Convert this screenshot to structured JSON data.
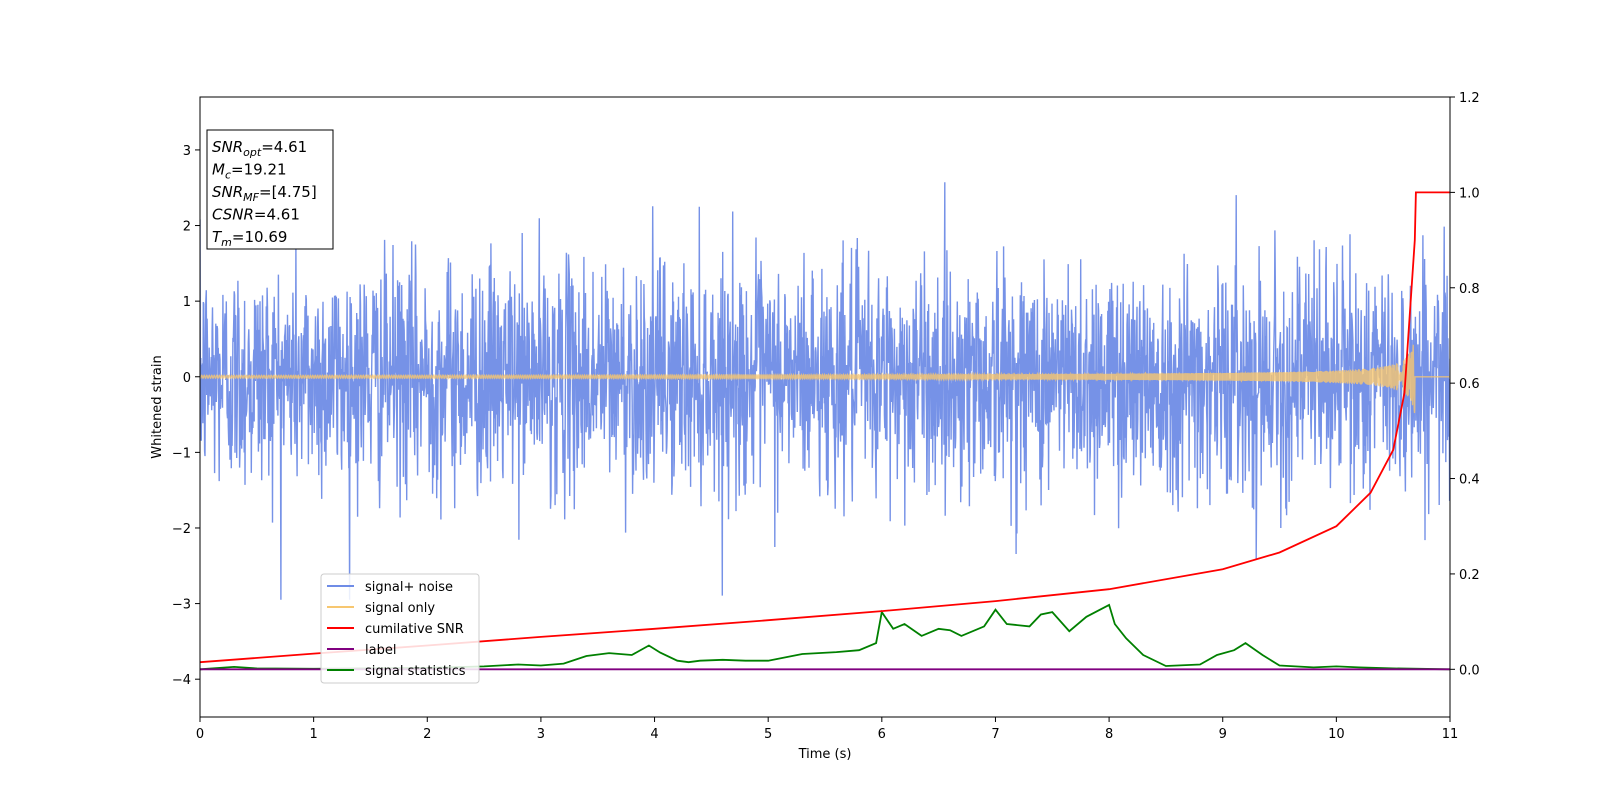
{
  "chart_data": {
    "type": "line",
    "xlabel": "Time (s)",
    "ylabel": "Whitened strain",
    "xlim": [
      0,
      11
    ],
    "ylim": [
      -4.5,
      3.7
    ],
    "y2lim": [
      -0.1,
      1.2
    ],
    "xticks": [
      0,
      1,
      2,
      3,
      4,
      5,
      6,
      7,
      8,
      9,
      10,
      11
    ],
    "yticks": [
      -4,
      -3,
      -2,
      -1,
      0,
      1,
      2,
      3
    ],
    "y2ticks": [
      0.0,
      0.2,
      0.4,
      0.6,
      0.8,
      1.0,
      1.2
    ],
    "legend_position": "lower-left",
    "legend": [
      {
        "label": "signal+ noise",
        "color": "#6f8ce6"
      },
      {
        "label": "signal only",
        "color": "#f7c770"
      },
      {
        "label": "cumilative SNR",
        "color": "#ff0000"
      },
      {
        "label": "label",
        "color": "#800080"
      },
      {
        "label": "signal statistics",
        "color": "#008000"
      }
    ],
    "annotation": [
      {
        "base": "SNR",
        "sub": "opt",
        "value": "=4.61"
      },
      {
        "base": "M",
        "sub": "c",
        "value": "=19.21"
      },
      {
        "base": "SNR",
        "sub": "MF",
        "value": "=[4.75]"
      },
      {
        "base": "CSNR",
        "sub": "",
        "value": "=4.61"
      },
      {
        "base": "T",
        "sub": "m",
        "value": "=10.69"
      }
    ],
    "series": [
      {
        "name": "signal+ noise",
        "axis": "left",
        "color": "#6f8ce6",
        "description_envelope": {
          "typical_amplitude": 1.5,
          "max": 2.8,
          "min": -2.95
        }
      },
      {
        "name": "signal only",
        "axis": "left",
        "color": "#f7c770",
        "chirp": {
          "merger_time": 10.69,
          "peak_amplitude": 0.6
        }
      },
      {
        "name": "cumilative SNR",
        "axis": "right",
        "color": "#ff0000",
        "x": [
          0,
          1,
          2,
          3,
          4,
          5,
          6,
          7,
          8,
          9,
          9.5,
          10,
          10.3,
          10.5,
          10.6,
          10.69,
          10.7,
          11
        ],
        "y": [
          0.015,
          0.033,
          0.05,
          0.068,
          0.085,
          0.103,
          0.122,
          0.143,
          0.168,
          0.21,
          0.245,
          0.3,
          0.37,
          0.46,
          0.58,
          0.9,
          1.0,
          1.0
        ]
      },
      {
        "name": "label",
        "axis": "right",
        "color": "#800080",
        "x": [
          0,
          11
        ],
        "y": [
          0,
          0
        ]
      },
      {
        "name": "signal statistics",
        "axis": "right",
        "color": "#008000",
        "x": [
          0,
          0.3,
          0.5,
          1,
          1.5,
          2,
          2.5,
          2.8,
          3,
          3.2,
          3.4,
          3.6,
          3.8,
          3.95,
          4.05,
          4.2,
          4.3,
          4.4,
          4.6,
          4.8,
          5,
          5.3,
          5.6,
          5.8,
          5.95,
          6.0,
          6.1,
          6.2,
          6.35,
          6.5,
          6.6,
          6.7,
          6.9,
          7.0,
          7.1,
          7.3,
          7.4,
          7.5,
          7.65,
          7.8,
          8.0,
          8.05,
          8.15,
          8.3,
          8.5,
          8.8,
          8.95,
          9.1,
          9.2,
          9.35,
          9.5,
          9.8,
          10,
          10.2,
          10.5,
          11
        ],
        "y": [
          0.0,
          0.005,
          0.002,
          0.001,
          0.002,
          0.003,
          0.006,
          0.01,
          0.008,
          0.012,
          0.028,
          0.034,
          0.03,
          0.05,
          0.035,
          0.018,
          0.015,
          0.018,
          0.02,
          0.018,
          0.018,
          0.032,
          0.036,
          0.04,
          0.055,
          0.12,
          0.085,
          0.095,
          0.07,
          0.085,
          0.082,
          0.07,
          0.09,
          0.125,
          0.095,
          0.09,
          0.115,
          0.12,
          0.08,
          0.11,
          0.135,
          0.095,
          0.065,
          0.03,
          0.007,
          0.01,
          0.03,
          0.04,
          0.055,
          0.03,
          0.008,
          0.004,
          0.006,
          0.004,
          0.002,
          0.0
        ]
      }
    ]
  }
}
